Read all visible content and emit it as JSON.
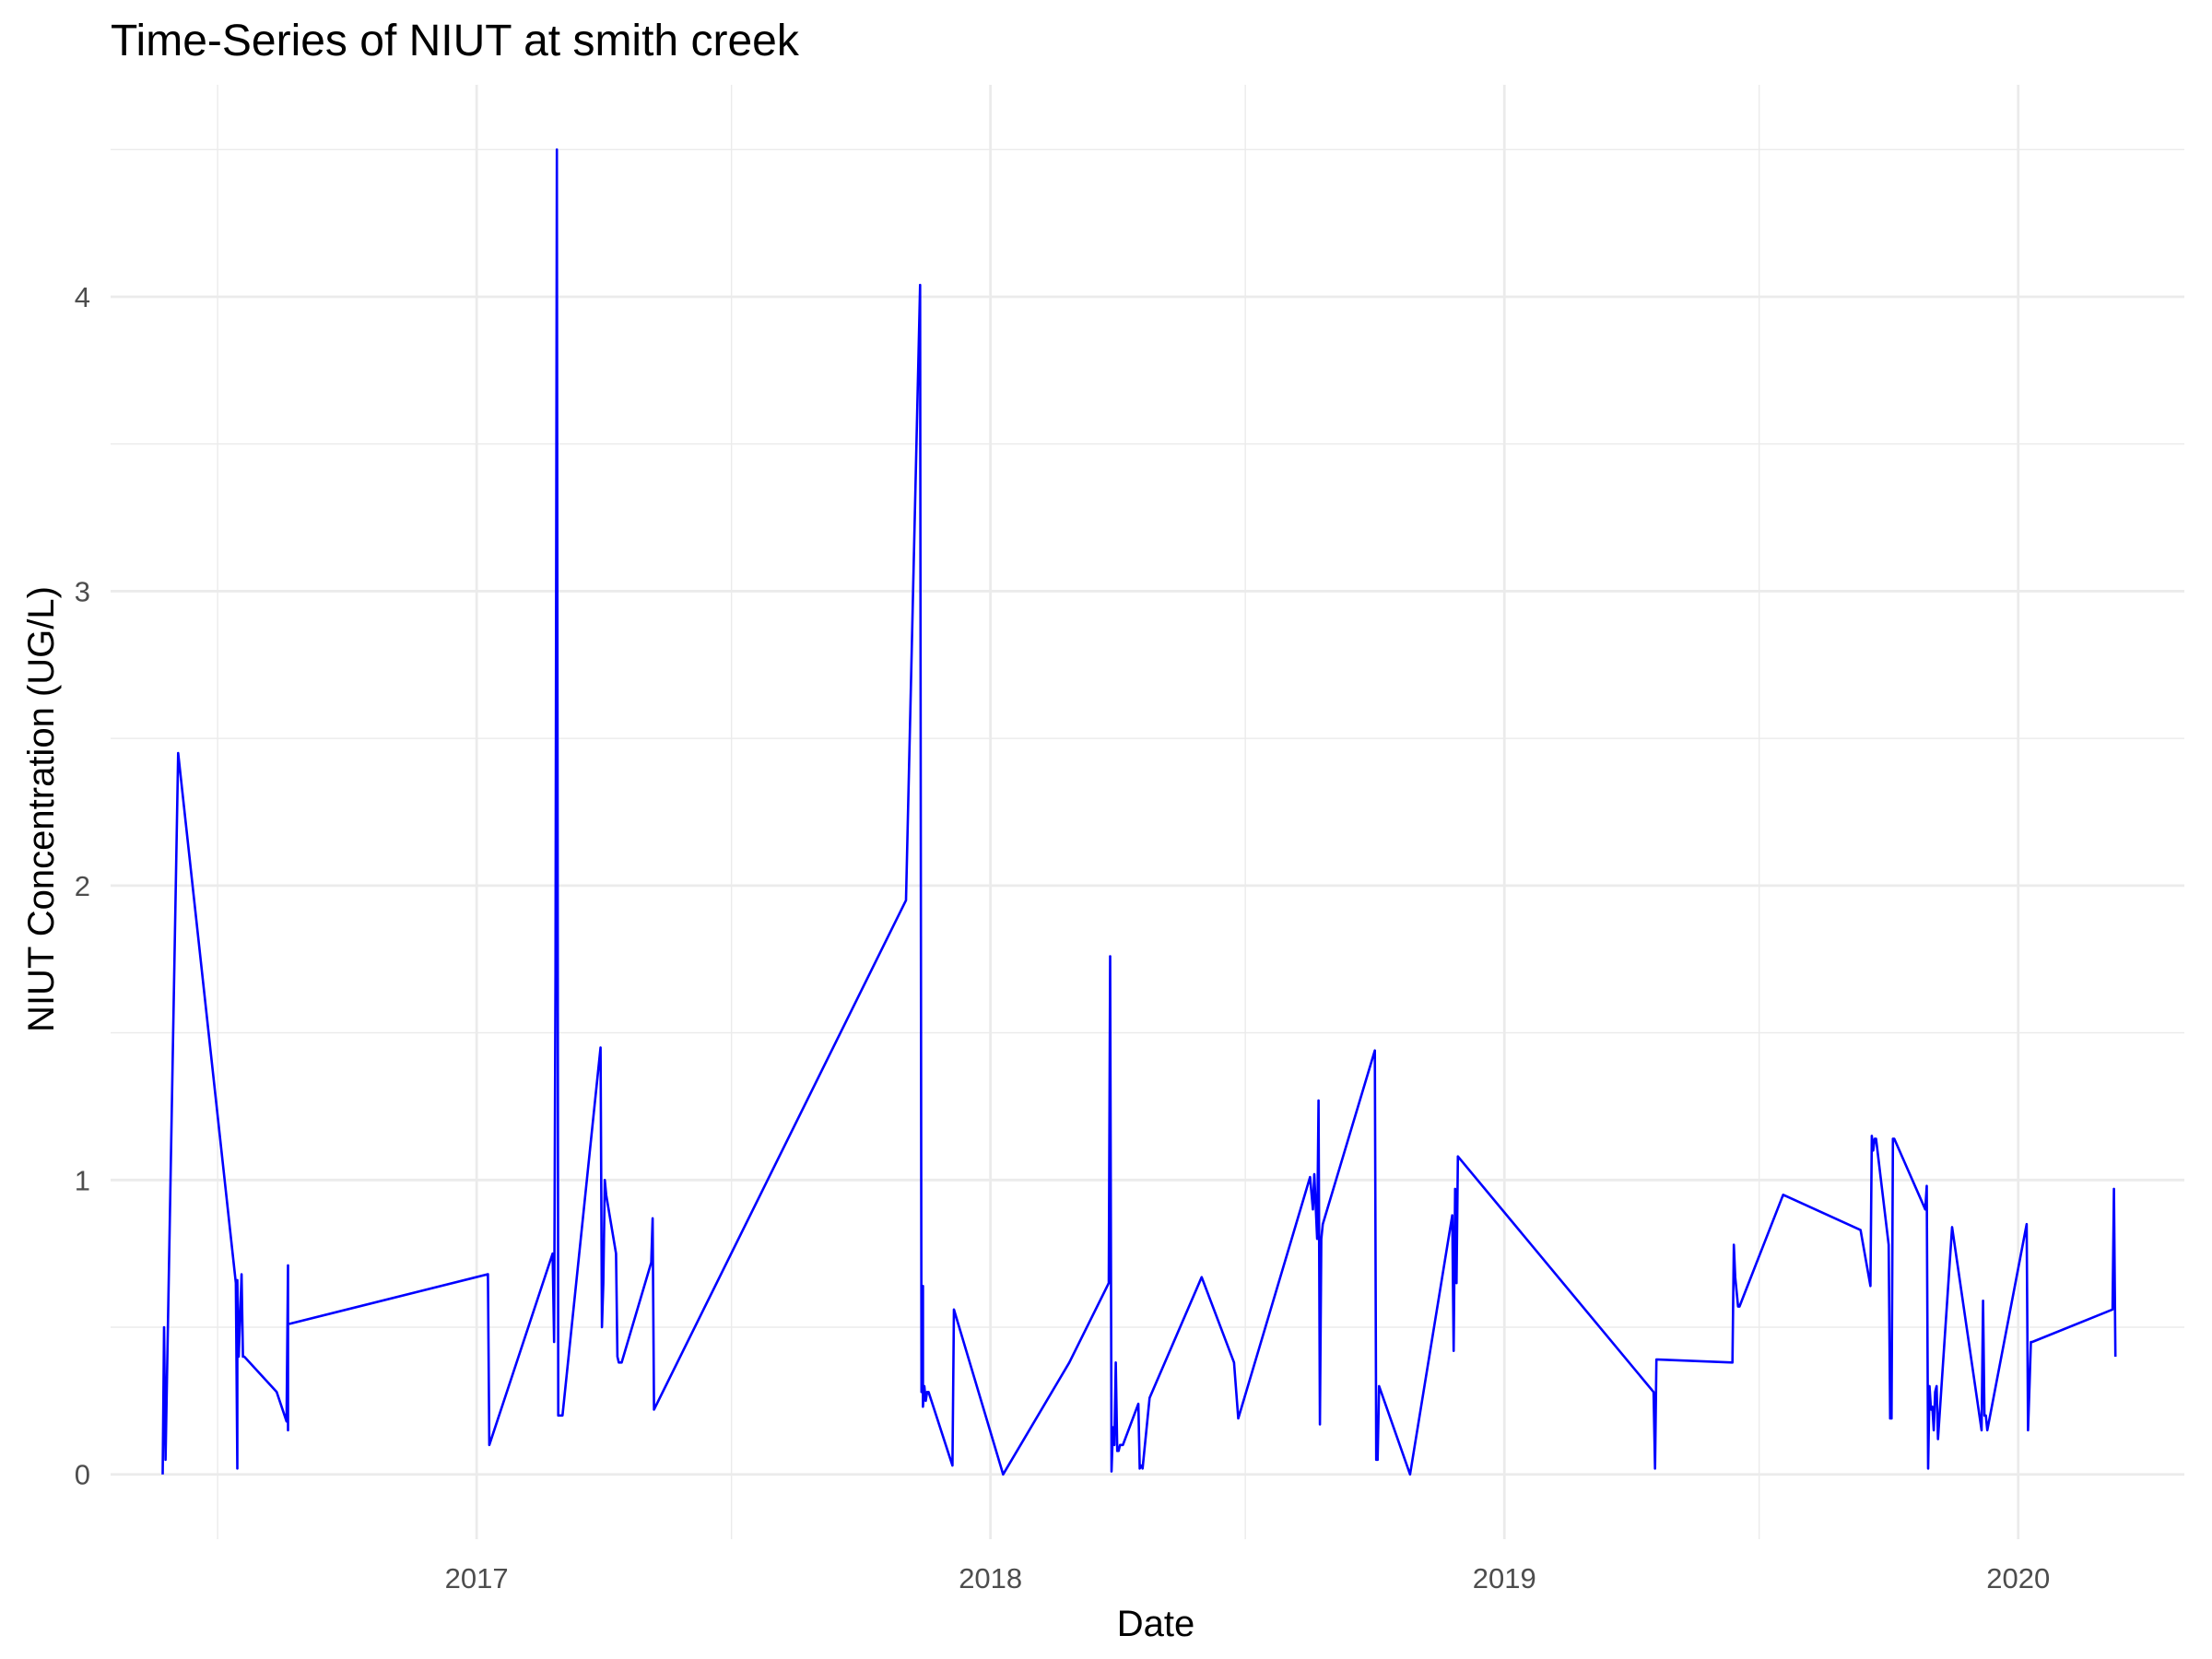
{
  "chart_data": {
    "type": "line",
    "title": "Time-Series of NIUT at smith creek",
    "xlabel": "Date",
    "ylabel": "NIUT Concentration (UG/L)",
    "x_range": [
      "2016-04-16",
      "2020-04-28"
    ],
    "ylim": [
      -0.22,
      4.72
    ],
    "x_ticks": [
      "2017",
      "2018",
      "2019",
      "2020"
    ],
    "y_ticks": [
      0,
      1,
      2,
      3,
      4
    ],
    "grid": true,
    "legend": "none",
    "series_color": "#0000ff",
    "series": [
      {
        "x": [
          "2016-05-23",
          "2016-05-24",
          "2016-05-25",
          "2016-06-03",
          "2016-07-14",
          "2016-07-15",
          "2016-07-15",
          "2016-07-16",
          "2016-07-18",
          "2016-07-19",
          "2016-07-20",
          "2016-08-12",
          "2016-08-19",
          "2016-08-20",
          "2016-08-20",
          "2016-08-20",
          "2017-01-09",
          "2017-01-10",
          "2017-02-24",
          "2017-02-25",
          "2017-02-26",
          "2017-02-27",
          "2017-02-28",
          "2017-03-01",
          "2017-03-03",
          "2017-03-30",
          "2017-03-31",
          "2017-04-01",
          "2017-04-02",
          "2017-04-03",
          "2017-04-10",
          "2017-04-11",
          "2017-04-12",
          "2017-04-13",
          "2017-04-14",
          "2017-05-05",
          "2017-05-06",
          "2017-05-07",
          "2017-11-02",
          "2017-11-12",
          "2017-11-13",
          "2017-11-14",
          "2017-11-14",
          "2017-11-15",
          "2017-11-16",
          "2017-11-17",
          "2017-11-18",
          "2017-12-05",
          "2017-12-06",
          "2018-01-10",
          "2018-02-26",
          "2018-03-26",
          "2018-03-27",
          "2018-03-28",
          "2018-03-29",
          "2018-03-30",
          "2018-03-31",
          "2018-04-01",
          "2018-04-02",
          "2018-04-03",
          "2018-04-04",
          "2018-04-05",
          "2018-04-16",
          "2018-04-17",
          "2018-04-18",
          "2018-04-19",
          "2018-04-24",
          "2018-05-31",
          "2018-06-23",
          "2018-06-26",
          "2018-08-16",
          "2018-08-18",
          "2018-08-19",
          "2018-08-21",
          "2018-08-22",
          "2018-08-23",
          "2018-08-24",
          "2018-08-25",
          "2018-10-01",
          "2018-10-02",
          "2018-10-03",
          "2018-10-04",
          "2018-10-26",
          "2018-11-25",
          "2018-11-26",
          "2018-11-27",
          "2018-11-28",
          "2018-11-29",
          "2019-04-17",
          "2019-04-18",
          "2019-04-19",
          "2019-04-20",
          "2019-06-12",
          "2019-06-13",
          "2019-06-14",
          "2019-06-16",
          "2019-06-17",
          "2019-07-18",
          "2019-09-11",
          "2019-09-18",
          "2019-09-19",
          "2019-09-20",
          "2019-09-21",
          "2019-09-22",
          "2019-10-01",
          "2019-10-02",
          "2019-10-03",
          "2019-10-04",
          "2019-10-05",
          "2019-10-27",
          "2019-10-28",
          "2019-10-29",
          "2019-10-30",
          "2019-10-31",
          "2019-11-01",
          "2019-11-02",
          "2019-11-03",
          "2019-11-04",
          "2019-11-05",
          "2019-11-15",
          "2019-12-06",
          "2019-12-07",
          "2019-12-08",
          "2019-12-09",
          "2019-12-10",
          "2020-01-07",
          "2020-01-08",
          "2020-01-09",
          "2020-01-10",
          "2020-01-11",
          "2020-03-08",
          "2020-03-09",
          "2020-03-10"
        ],
        "y": [
          0.0,
          0.5,
          0.05,
          2.45,
          0.65,
          0.02,
          0.66,
          0.4,
          0.68,
          0.4,
          0.4,
          0.28,
          0.18,
          0.71,
          0.15,
          0.51,
          0.68,
          0.1,
          0.75,
          0.45,
          1.7,
          4.5,
          0.2,
          0.2,
          0.2,
          1.45,
          0.5,
          0.65,
          1.0,
          0.95,
          0.75,
          0.4,
          0.38,
          0.38,
          0.38,
          0.72,
          0.87,
          0.22,
          1.95,
          4.04,
          0.28,
          0.64,
          0.23,
          0.3,
          0.25,
          0.28,
          0.28,
          0.03,
          0.56,
          0.0,
          0.38,
          0.65,
          1.76,
          0.01,
          0.16,
          0.1,
          0.38,
          0.08,
          0.08,
          0.1,
          0.1,
          0.1,
          0.24,
          0.02,
          0.03,
          0.02,
          0.26,
          0.67,
          0.38,
          0.19,
          1.01,
          0.9,
          1.02,
          0.8,
          1.27,
          0.17,
          0.8,
          0.85,
          1.44,
          0.05,
          0.05,
          0.3,
          0.0,
          0.88,
          0.42,
          0.97,
          0.65,
          1.08,
          0.28,
          0.02,
          0.39,
          0.39,
          0.38,
          0.78,
          0.67,
          0.57,
          0.57,
          0.95,
          0.83,
          0.64,
          1.15,
          1.1,
          1.14,
          1.14,
          0.78,
          0.19,
          0.19,
          1.14,
          1.14,
          0.9,
          0.98,
          0.02,
          0.3,
          0.22,
          0.23,
          0.15,
          0.28,
          0.3,
          0.12,
          0.84,
          0.15,
          0.59,
          0.2,
          0.2,
          0.15,
          0.85,
          0.15,
          0.3,
          0.45,
          0.45,
          0.56,
          0.97,
          0.4
        ]
      }
    ]
  }
}
